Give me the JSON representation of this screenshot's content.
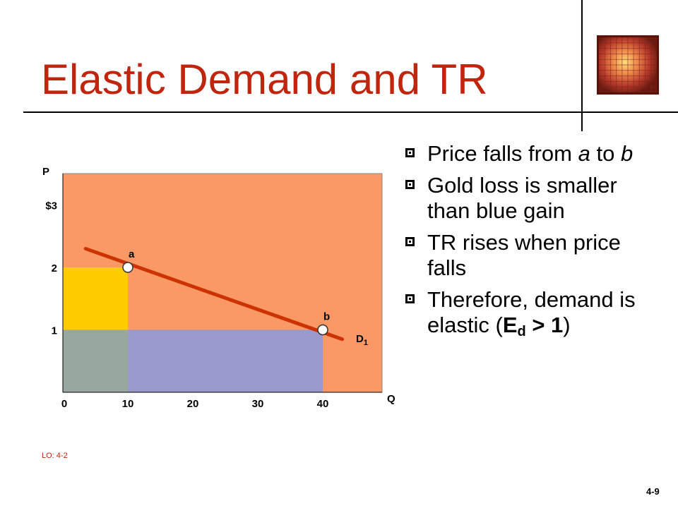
{
  "title": "Elastic Demand and TR",
  "slide_number": "4-9",
  "learning_objective": "LO: 4-2",
  "bullets": [
    {
      "parts": [
        [
          "Price falls from ",
          ""
        ],
        [
          "a",
          "i"
        ],
        [
          " to ",
          ""
        ],
        [
          "b",
          "i"
        ]
      ]
    },
    {
      "parts": [
        [
          "Gold loss is smaller than blue gain",
          ""
        ]
      ]
    },
    {
      "parts": [
        [
          "TR rises when price falls",
          ""
        ]
      ]
    },
    {
      "parts": [
        [
          "Therefore, demand is elastic (",
          ""
        ],
        [
          "E",
          "b"
        ],
        [
          "d",
          "bsub"
        ],
        [
          " > 1",
          "b"
        ],
        [
          ")",
          ""
        ]
      ]
    }
  ],
  "chart_data": {
    "type": "line",
    "y_axis_label": "P",
    "x_axis_label": "Q",
    "y_ticks": [
      {
        "value": 3,
        "label": "$3"
      },
      {
        "value": 2,
        "label": "2"
      },
      {
        "value": 1,
        "label": "1"
      }
    ],
    "x_ticks": [
      {
        "value": 0,
        "label": "0"
      },
      {
        "value": 10,
        "label": "10"
      },
      {
        "value": 20,
        "label": "20"
      },
      {
        "value": 30,
        "label": "30"
      },
      {
        "value": 40,
        "label": "40"
      }
    ],
    "demand_curve": {
      "label_main": "D",
      "label_sub": "1",
      "from": {
        "q": 3.5,
        "p": 2.3
      },
      "to": {
        "q": 43,
        "p": 0.85
      }
    },
    "points": [
      {
        "name": "a",
        "q": 10,
        "p": 2
      },
      {
        "name": "b",
        "q": 40,
        "p": 1
      }
    ],
    "regions": [
      {
        "role": "background",
        "color": "#fb9966"
      },
      {
        "role": "gold_loss",
        "color": "#ffcc00",
        "q": [
          0,
          10
        ],
        "p": [
          1,
          2
        ]
      },
      {
        "role": "common",
        "color": "#99a89f",
        "q": [
          0,
          10
        ],
        "p": [
          0,
          1
        ]
      },
      {
        "role": "blue_gain",
        "color": "#9999cc",
        "q": [
          10,
          40
        ],
        "p": [
          0,
          1
        ]
      }
    ],
    "colors": {
      "curve": "#cc3300",
      "title": "#c0250e"
    }
  }
}
